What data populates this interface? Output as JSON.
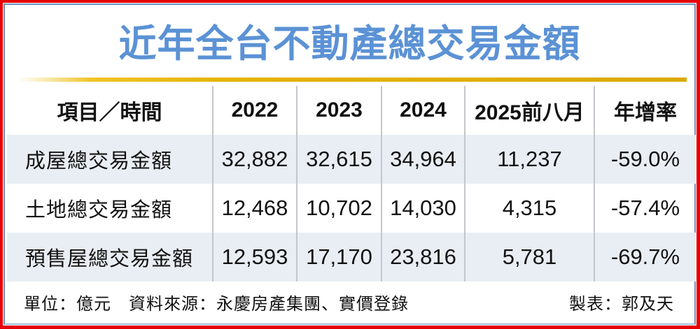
{
  "title": "近年全台不動產總交易金額",
  "chart_data": {
    "type": "table",
    "title": "近年全台不動產總交易金額",
    "columns": [
      "項目／時間",
      "2022",
      "2023",
      "2024",
      "2025前八月",
      "年增率"
    ],
    "rows": [
      [
        "成屋總交易金額",
        "32,882",
        "32,615",
        "34,964",
        "11,237",
        "-59.0%"
      ],
      [
        "土地總交易金額",
        "12,468",
        "10,702",
        "14,030",
        "4,315",
        "-57.4%"
      ],
      [
        "預售屋總交易金額",
        "12,593",
        "17,170",
        "23,816",
        "5,781",
        "-69.7%"
      ]
    ],
    "unit": "億元",
    "layout_hints": {
      "alternating_row_bands": true,
      "band_rows": [
        0,
        2
      ],
      "column_dividers": true
    }
  },
  "footer": {
    "left": "單位：億元　資料來源：永慶房產集團、實價登錄",
    "right": "製表：郭及天"
  },
  "colors": {
    "border-red": "#e60005",
    "frame-blue": "#6e91be",
    "frame-blue-light": "#9bc0dc",
    "title-blue": "#5b92d5",
    "gold": "#e6b400",
    "row-band": "#e9eef4",
    "divider": "#c3c7cb",
    "text": "#111111"
  }
}
